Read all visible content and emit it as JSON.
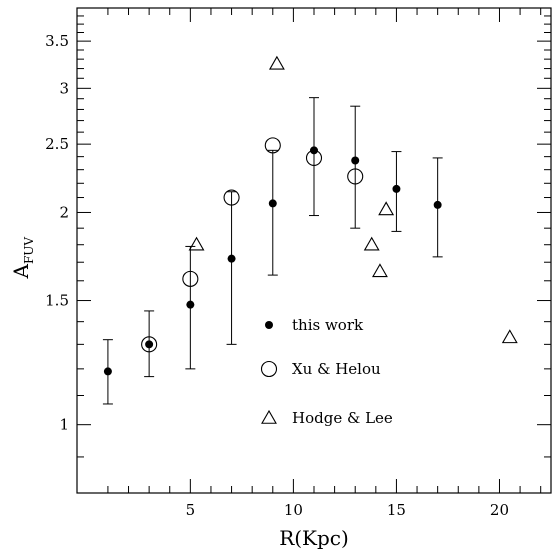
{
  "chart_data": {
    "type": "scatter",
    "xlabel": "R(Kpc)",
    "ylabel_main": "A",
    "ylabel_sub": "FUV",
    "xlim": [
      -0.5,
      22.5
    ],
    "ylim": [
      0.8,
      3.9
    ],
    "y_scale": "log",
    "x_ticks_major": [
      5,
      10,
      15,
      20
    ],
    "x_ticks_minor": [
      1,
      2,
      3,
      4,
      6,
      7,
      8,
      9,
      11,
      12,
      13,
      14,
      16,
      17,
      18,
      19,
      21,
      22
    ],
    "y_ticks_major": [
      1,
      1.5,
      2,
      2.5,
      3,
      3.5
    ],
    "y_tick_labels": [
      "1",
      "1.5",
      "2",
      "2.5",
      "3",
      "3.5"
    ],
    "y_ticks_minor": [
      0.9,
      1.1,
      1.2,
      1.3,
      1.4,
      1.6,
      1.7,
      1.8,
      1.9,
      2.1,
      2.2,
      2.3,
      2.4,
      2.6,
      2.7,
      2.8,
      2.9,
      3.1,
      3.2,
      3.3,
      3.4,
      3.6,
      3.7,
      3.8
    ],
    "legend_position": "center",
    "series": [
      {
        "name": "this work",
        "marker": "filled-circle",
        "points": [
          {
            "x": 1,
            "y": 1.19,
            "ylo": 1.07,
            "yhi": 1.32
          },
          {
            "x": 3,
            "y": 1.3,
            "ylo": 1.17,
            "yhi": 1.45
          },
          {
            "x": 5,
            "y": 1.48,
            "ylo": 1.2,
            "yhi": 1.79
          },
          {
            "x": 7,
            "y": 1.72,
            "ylo": 1.3,
            "yhi": 2.14
          },
          {
            "x": 9,
            "y": 2.06,
            "ylo": 1.63,
            "yhi": 2.45
          },
          {
            "x": 11,
            "y": 2.45,
            "ylo": 1.98,
            "yhi": 2.91
          },
          {
            "x": 13,
            "y": 2.37,
            "ylo": 1.9,
            "yhi": 2.83
          },
          {
            "x": 15,
            "y": 2.16,
            "ylo": 1.88,
            "yhi": 2.44
          },
          {
            "x": 17,
            "y": 2.05,
            "ylo": 1.73,
            "yhi": 2.39
          }
        ]
      },
      {
        "name": "Xu & Helou",
        "marker": "open-circle",
        "points": [
          {
            "x": 3,
            "y": 1.3
          },
          {
            "x": 5,
            "y": 1.61
          },
          {
            "x": 7,
            "y": 2.1
          },
          {
            "x": 9,
            "y": 2.49
          },
          {
            "x": 11,
            "y": 2.39
          },
          {
            "x": 13,
            "y": 2.25
          }
        ]
      },
      {
        "name": "Hodge & Lee",
        "marker": "open-triangle",
        "points": [
          {
            "x": 5.3,
            "y": 1.8
          },
          {
            "x": 9.2,
            "y": 3.25
          },
          {
            "x": 13.8,
            "y": 1.8
          },
          {
            "x": 14.2,
            "y": 1.65
          },
          {
            "x": 14.5,
            "y": 2.02
          },
          {
            "x": 20.5,
            "y": 1.33
          }
        ]
      }
    ]
  }
}
